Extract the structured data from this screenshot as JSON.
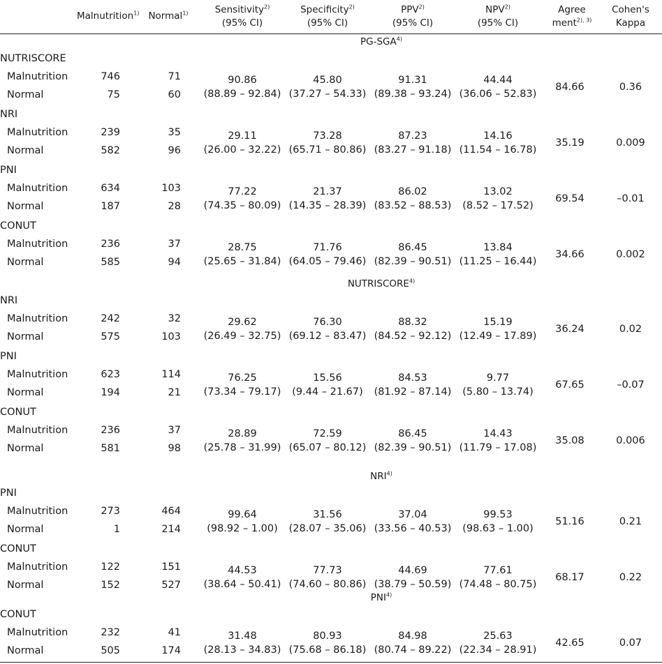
{
  "header": {
    "malnutrition": "Malnutrition",
    "malnutrition_sup": "1)",
    "normal": "Normal",
    "normal_sup": "1)",
    "sensitivity": "Sensitivity",
    "sensitivity_sup": "2)",
    "sensitivity_ci": "(95% CI)",
    "specificity": "Specificity",
    "specificity_sup": "2)",
    "specificity_ci": "(95% CI)",
    "ppv": "PPV",
    "ppv_sup": "2)",
    "ppv_ci": "(95% CI)",
    "npv": "NPV",
    "npv_sup": "2)",
    "npv_ci": "(95% CI)",
    "agree1": "Agree",
    "agree2": "ment",
    "agree_sup": "2), 3)",
    "kappa1": "Cohen's",
    "kappa2": "Kappa"
  },
  "sections": [
    {
      "title": "PG-SGA",
      "sup": "4)",
      "groups": [
        {
          "name": "NUTRISCORE",
          "mal": [
            "746",
            "71"
          ],
          "norm": [
            "75",
            "60"
          ],
          "sens": [
            "90.86",
            "(88.89 – 92.84)"
          ],
          "spec": [
            "45.80",
            "(37.27 – 54.33)"
          ],
          "ppv": [
            "91.31",
            "(89.38 – 93.24)"
          ],
          "npv": [
            "44.44",
            "(36.06 – 52.83)"
          ],
          "agree": "84.66",
          "kappa": "0.36"
        },
        {
          "name": "NRI",
          "mal": [
            "239",
            "35"
          ],
          "norm": [
            "582",
            "96"
          ],
          "sens": [
            "29.11",
            "(26.00 – 32.22)"
          ],
          "spec": [
            "73.28",
            "(65.71 – 80.86)"
          ],
          "ppv": [
            "87.23",
            "(83.27 – 91.18)"
          ],
          "npv": [
            "14.16",
            "(11.54 – 16.78)"
          ],
          "agree": "35.19",
          "kappa": "0.009"
        },
        {
          "name": "PNI",
          "mal": [
            "634",
            "103"
          ],
          "norm": [
            "187",
            "28"
          ],
          "sens": [
            "77.22",
            "(74.35 – 80.09)"
          ],
          "spec": [
            "21.37",
            "(14.35 – 28.39)"
          ],
          "ppv": [
            "86.02",
            "(83.52 – 88.53)"
          ],
          "npv": [
            "13.02",
            "(8.52 – 17.52)"
          ],
          "agree": "69.54",
          "kappa": "–0.01"
        },
        {
          "name": "CONUT",
          "mal": [
            "236",
            "37"
          ],
          "norm": [
            "585",
            "94"
          ],
          "sens": [
            "28.75",
            "(25.65 – 31.84)"
          ],
          "spec": [
            "71.76",
            "(64.05 – 79.46)"
          ],
          "ppv": [
            "86.45",
            "(82.39 – 90.51)"
          ],
          "npv": [
            "13.84",
            "(11.25 – 16.44)"
          ],
          "agree": "34.66",
          "kappa": "0.002"
        }
      ]
    },
    {
      "title": "NUTRISCORE",
      "sup": "4)",
      "groups": [
        {
          "name": "NRI",
          "mal": [
            "242",
            "32"
          ],
          "norm": [
            "575",
            "103"
          ],
          "sens": [
            "29.62",
            "(26.49 – 32.75)"
          ],
          "spec": [
            "76.30",
            "(69.12 – 83.47)"
          ],
          "ppv": [
            "88.32",
            "(84.52 – 92.12)"
          ],
          "npv": [
            "15.19",
            "(12.49 – 17.89)"
          ],
          "agree": "36.24",
          "kappa": "0.02"
        },
        {
          "name": "PNI",
          "mal": [
            "623",
            "114"
          ],
          "norm": [
            "194",
            "21"
          ],
          "sens": [
            "76.25",
            "(73.34 – 79.17)"
          ],
          "spec": [
            "15.56",
            "(9.44 – 21.67)"
          ],
          "ppv": [
            "84.53",
            "(81.92 – 87.14)"
          ],
          "npv": [
            "9.77",
            "(5.80 – 13.74)"
          ],
          "agree": "67.65",
          "kappa": "–0.07"
        },
        {
          "name": "CONUT",
          "mal": [
            "236",
            "37"
          ],
          "norm": [
            "581",
            "98"
          ],
          "sens": [
            "28.89",
            "(25.78 – 31.99)"
          ],
          "spec": [
            "72.59",
            "(65.07 – 80.12)"
          ],
          "ppv": [
            "86.45",
            "(82.39 – 90.51)"
          ],
          "npv": [
            "14.43",
            "(11.79 – 17.08)"
          ],
          "agree": "35.08",
          "kappa": "0.006"
        }
      ]
    },
    {
      "title": "NRI",
      "sup": "4)",
      "groups": [
        {
          "name": "PNI",
          "mal": [
            "273",
            "464"
          ],
          "norm": [
            "1",
            "214"
          ],
          "sens": [
            "99.64",
            "(98.92 – 1.00)"
          ],
          "spec": [
            "31.56",
            "(28.07 – 35.06)"
          ],
          "ppv": [
            "37.04",
            "(33.56 – 40.53)"
          ],
          "npv": [
            "99.53",
            "(98.63 – 1.00)"
          ],
          "agree": "51.16",
          "kappa": "0.21"
        },
        {
          "name": "CONUT",
          "mal": [
            "122",
            "151"
          ],
          "norm": [
            "152",
            "527"
          ],
          "sens": [
            "44.53",
            "(38.64 – 50.41)"
          ],
          "spec": [
            "77.73",
            "(74.60 – 80.86)"
          ],
          "ppv": [
            "44.69",
            "(38.79 – 50.59)"
          ],
          "npv": [
            "77.61",
            "(74.48 – 80.75)"
          ],
          "agree": "68.17",
          "kappa": "0.22"
        }
      ]
    },
    {
      "title": "PNI",
      "sup": "4)",
      "groups": [
        {
          "name": "CONUT",
          "mal": [
            "232",
            "41"
          ],
          "norm": [
            "505",
            "174"
          ],
          "sens": [
            "31.48",
            "(28.13 – 34.83)"
          ],
          "spec": [
            "80.93",
            "(75.68 – 86.18)"
          ],
          "ppv": [
            "84.98",
            "(80.74 – 89.22)"
          ],
          "npv": [
            "25.63",
            "(22.34 – 28.91)"
          ],
          "agree": "42.65",
          "kappa": "0.07"
        }
      ]
    }
  ],
  "row_labels": {
    "mal": "Malnutrition",
    "norm": "Normal"
  }
}
